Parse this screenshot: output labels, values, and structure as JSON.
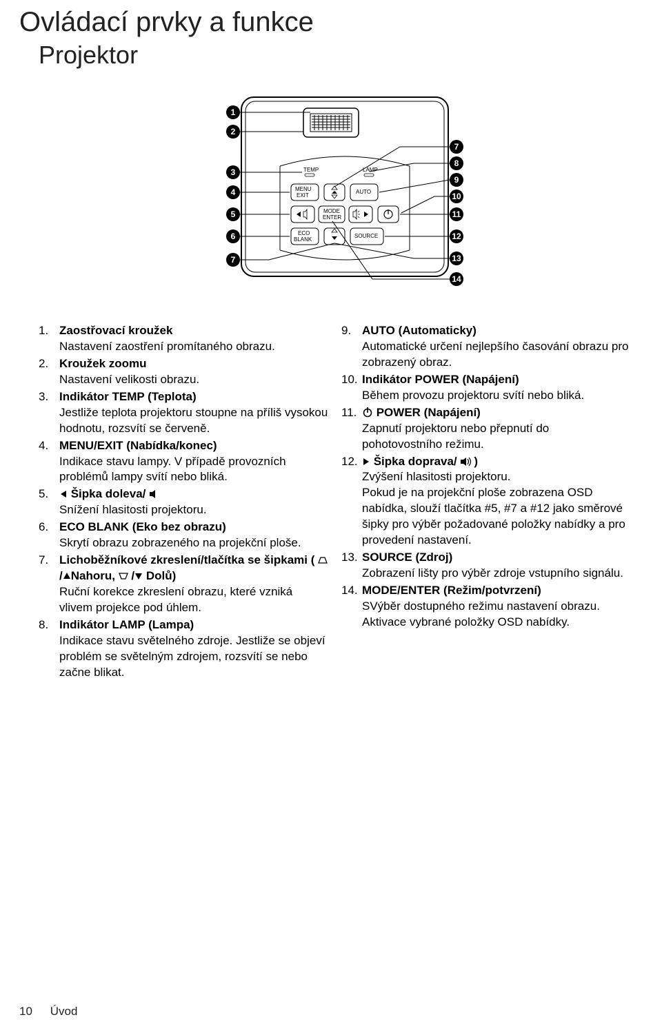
{
  "title": "Ovládací prvky a funkce",
  "subtitle": "Projektor",
  "footer": {
    "page": "10",
    "section": "Úvod"
  },
  "diagram": {
    "panel_labels": {
      "temp": "TEMP",
      "lamp": "LAMP",
      "menu": "MENU",
      "exit": "EXIT",
      "auto": "AUTO",
      "mode": "MODE",
      "enter": "ENTER",
      "eco": "ECO",
      "blank": "BLANK",
      "source": "SOURCE"
    },
    "left_nums": [
      "1",
      "2",
      "3",
      "4",
      "5",
      "6",
      "7"
    ],
    "right_nums": [
      "7",
      "8",
      "9",
      "10",
      "11",
      "12",
      "13",
      "14"
    ]
  },
  "left": [
    {
      "n": "1.",
      "term": "Zaostřovací kroužek",
      "desc": "Nastavení zaostření promítaného obrazu."
    },
    {
      "n": "2.",
      "term": "Kroužek zoomu",
      "desc": "Nastavení velikosti obrazu."
    },
    {
      "n": "3.",
      "term": "Indikátor TEMP (Teplota)",
      "desc": "Jestliže teplota projektoru stoupne na příliš vysokou hodnotu, rozsvítí se červeně."
    },
    {
      "n": "4.",
      "term": "MENU/EXIT (Nabídka/konec)",
      "desc": "Indikace stavu lampy. V případě provozních problémů lampy svítí nebo bliká."
    },
    {
      "n": "5.",
      "term_pre": "   Šipka doleva/",
      "term_post": "",
      "desc": "Snížení hlasitosti projektoru.",
      "icon": "vol-down"
    },
    {
      "n": "6.",
      "term": "ECO BLANK (Eko bez obrazu)",
      "desc": "Skrytí obrazu zobrazeného na projekční ploše."
    },
    {
      "n": "7.",
      "term": "Lichoběžníkové zkreslení/tlačítka se šipkami (    /   Nahoru,    /    Dolů)",
      "desc": "Ruční korekce zkreslení obrazu, které vzniká vlivem projekce pod úhlem.",
      "keystone": true
    },
    {
      "n": "8.",
      "term": "Indikátor LAMP (Lampa)",
      "desc": "Indikace stavu světelného zdroje. Jestliže se objeví problém se světelným zdrojem, rozsvítí se nebo začne blikat."
    }
  ],
  "right": [
    {
      "n": "9.",
      "term": "AUTO (Automaticky)",
      "desc": "Automatické určení nejlepšího časování obrazu pro zobrazený obraz."
    },
    {
      "n": "10.",
      "term": "Indikátor POWER (Napájení)",
      "desc": "Během provozu projektoru svítí nebo bliká."
    },
    {
      "n": "11.",
      "term_pre": "",
      "term_post": " POWER (Napájení)",
      "desc": "Zapnutí projektoru nebo přepnutí do pohotovostního režimu.",
      "icon": "power"
    },
    {
      "n": "12.",
      "term_pre": "   Šipka doprava/",
      "term_post": ")",
      "desc": "Zvýšení hlasitosti projektoru.\nPokud je na projekční ploše zobrazena OSD nabídka, slouží tlačítka #5, #7 a #12 jako směrové šipky pro výběr požadované položky nabídky a pro provedení nastavení.",
      "icon": "vol-up"
    },
    {
      "n": "13.",
      "term": "SOURCE (Zdroj)",
      "desc": "Zobrazení lišty pro výběr zdroje vstupního signálu."
    },
    {
      "n": "14.",
      "term": "MODE/ENTER (Režim/potvrzení)",
      "desc": "SVýběr dostupného režimu nastavení obrazu.\nAktivace vybrané položky OSD nabídky."
    }
  ]
}
